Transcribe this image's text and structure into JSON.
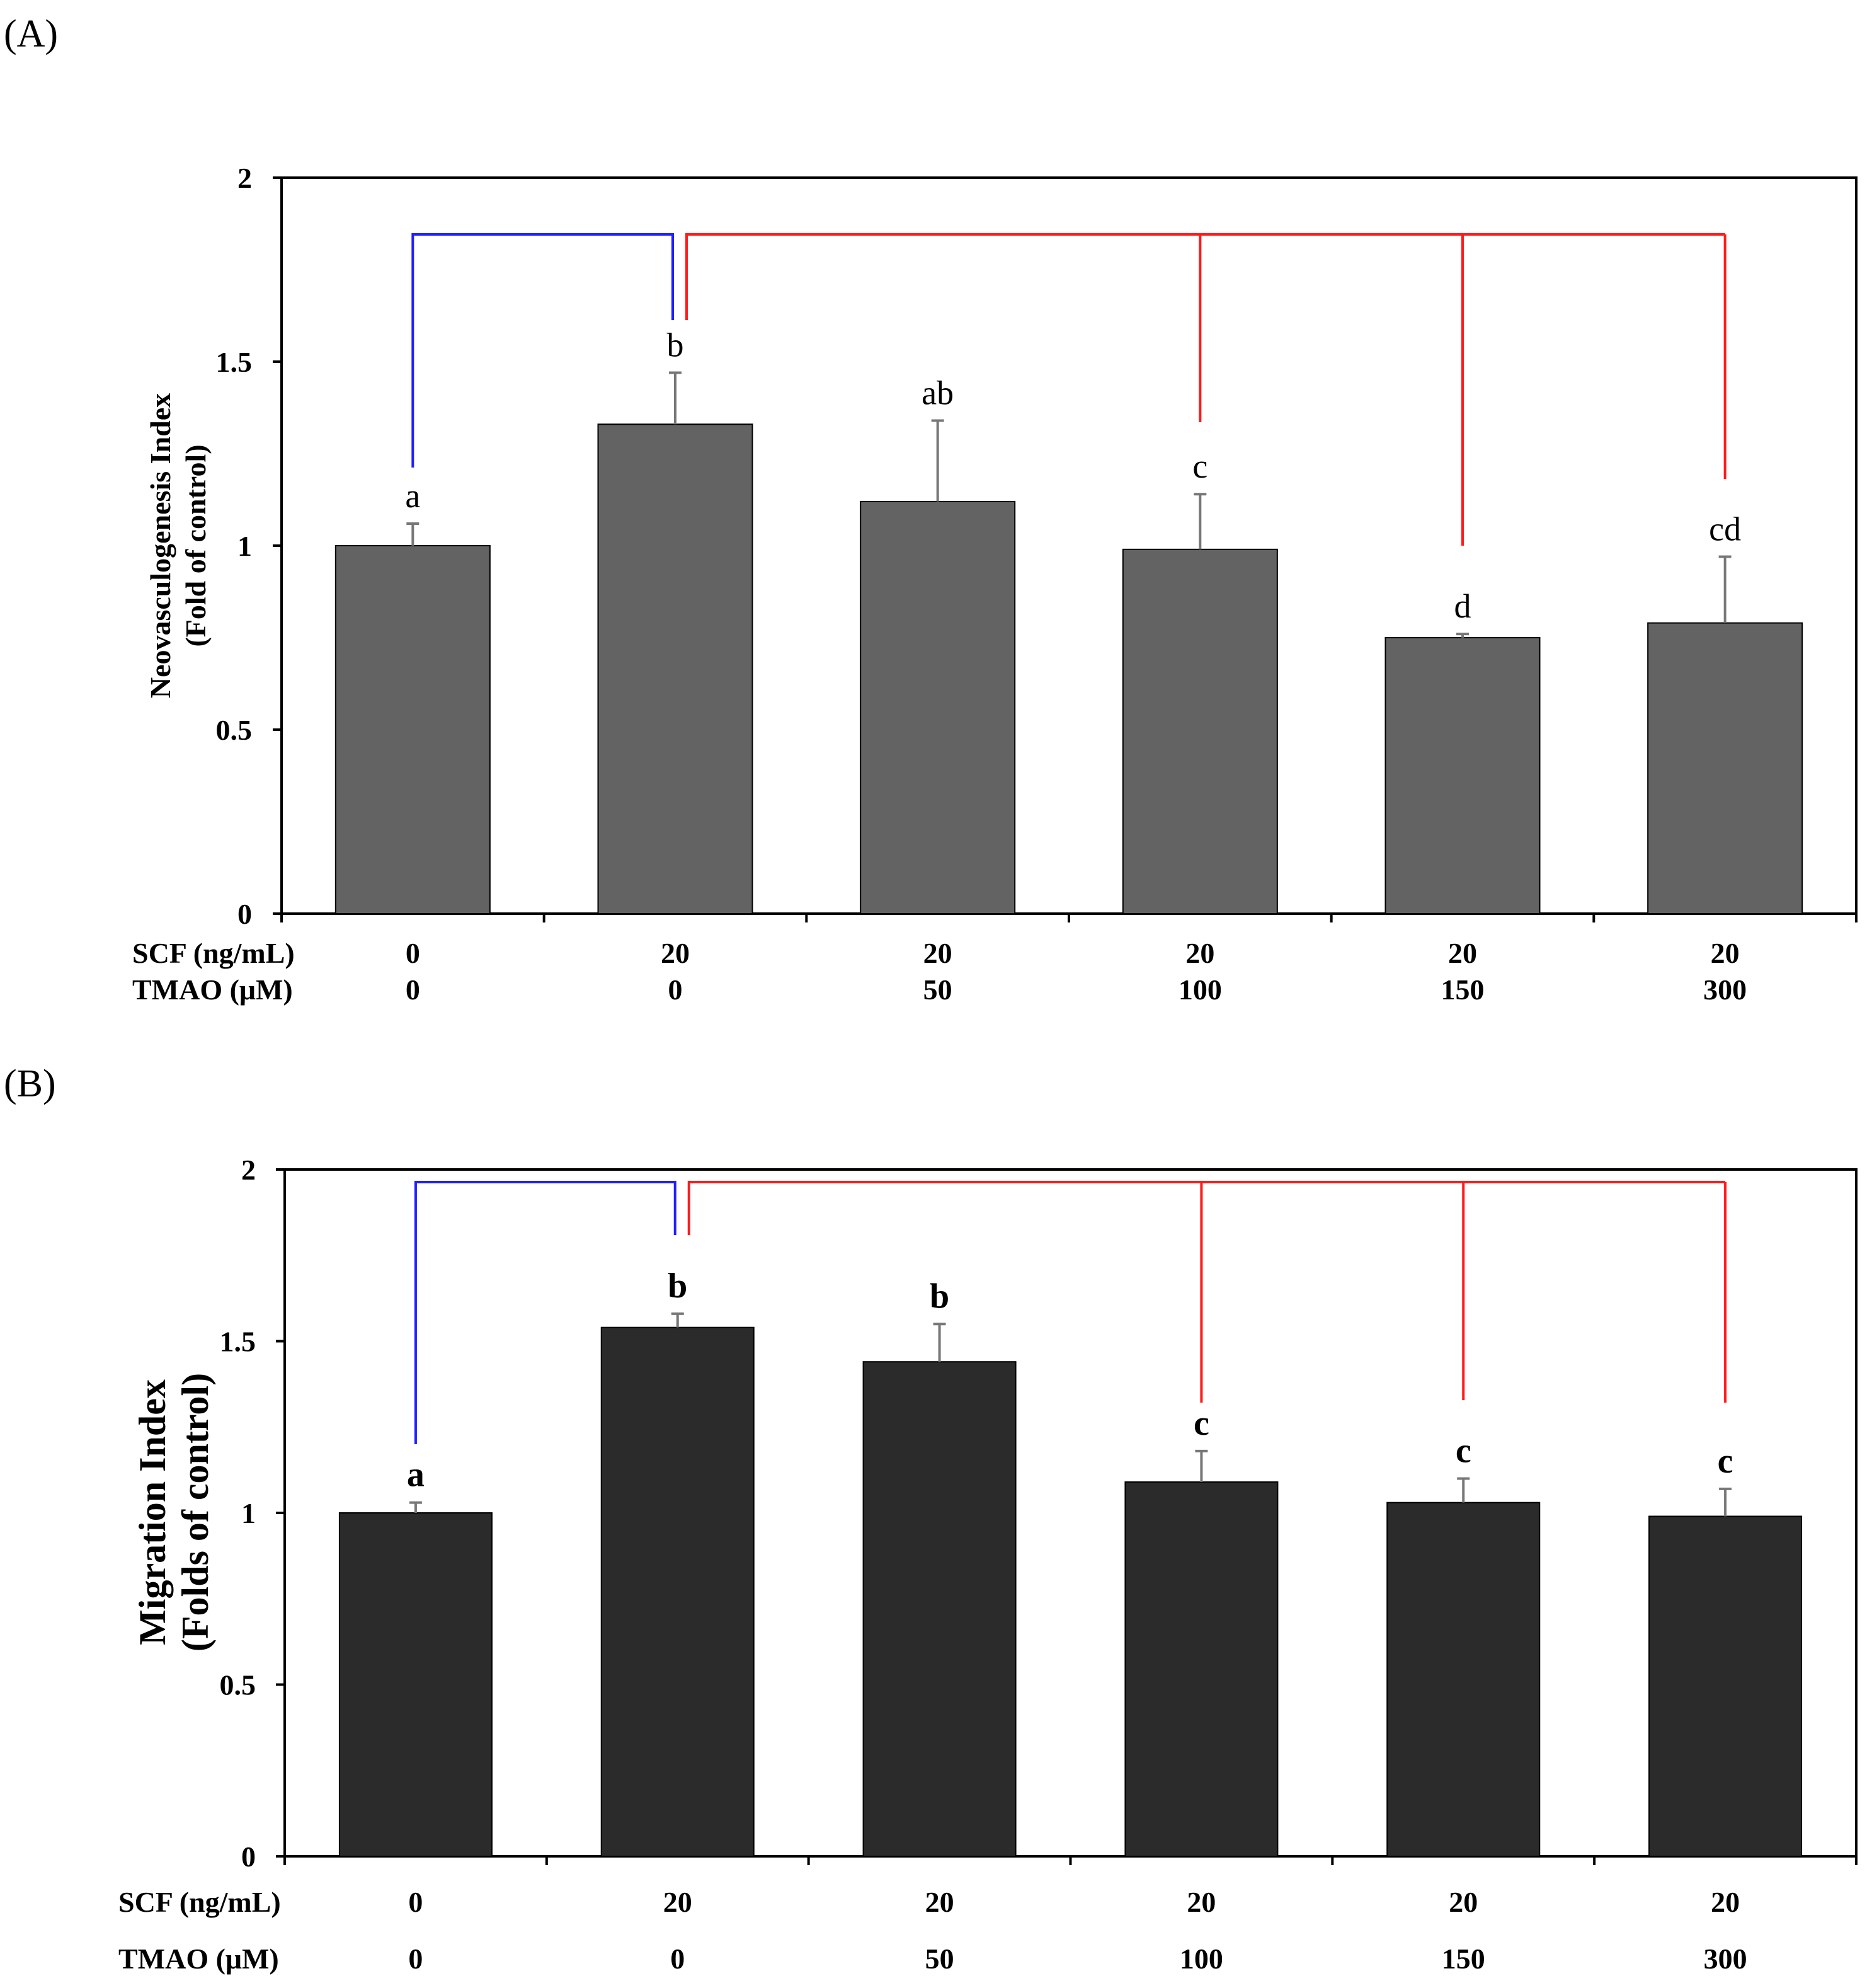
{
  "chart_data": [
    {
      "panel": "(A)",
      "type": "bar",
      "ylabel_line1": "Neovasculogenesis Index",
      "ylabel_line2": "(Fold of control)",
      "ylim": [
        0,
        2
      ],
      "yticks": [
        "0",
        "0.5",
        "1",
        "1.5",
        "2"
      ],
      "row_labels": [
        "SCF (ng/mL)",
        "TMAO (μM)"
      ],
      "scf": [
        "0",
        "20",
        "20",
        "20",
        "20",
        "20"
      ],
      "tmao": [
        "0",
        "0",
        "50",
        "100",
        "150",
        "300"
      ],
      "values": [
        1.0,
        1.33,
        1.12,
        0.99,
        0.75,
        0.79
      ],
      "errors": [
        0.06,
        0.14,
        0.22,
        0.15,
        0.01,
        0.18
      ],
      "letters": [
        "a",
        "b",
        "ab",
        "c",
        "d",
        "cd"
      ],
      "bar_color": "#636363",
      "comparisons": [
        {
          "color": "#1f1fff",
          "from": 0,
          "to": 1
        },
        {
          "color": "#ff1a1a",
          "from": 1,
          "to": [
            3,
            4,
            5
          ]
        }
      ]
    },
    {
      "panel": "(B)",
      "type": "bar",
      "ylabel_line1": "Migration Index",
      "ylabel_line2": "(Folds of control)",
      "ylim": [
        0,
        2
      ],
      "yticks": [
        "0",
        "0.5",
        "1",
        "1.5",
        "2"
      ],
      "row_labels": [
        "SCF (ng/mL)",
        "TMAO (μM)"
      ],
      "scf": [
        "0",
        "20",
        "20",
        "20",
        "20",
        "20"
      ],
      "tmao": [
        "0",
        "0",
        "50",
        "100",
        "150",
        "300"
      ],
      "values": [
        1.0,
        1.54,
        1.44,
        1.09,
        1.03,
        0.99
      ],
      "errors": [
        0.03,
        0.04,
        0.11,
        0.09,
        0.07,
        0.08
      ],
      "letters": [
        "a",
        "b",
        "b",
        "c",
        "c",
        "c"
      ],
      "bar_color": "#2b2b2b",
      "comparisons": [
        {
          "color": "#1f1fff",
          "from": 0,
          "to": 1
        },
        {
          "color": "#ff1a1a",
          "from": 1,
          "to": [
            3,
            4,
            5
          ]
        }
      ]
    }
  ]
}
